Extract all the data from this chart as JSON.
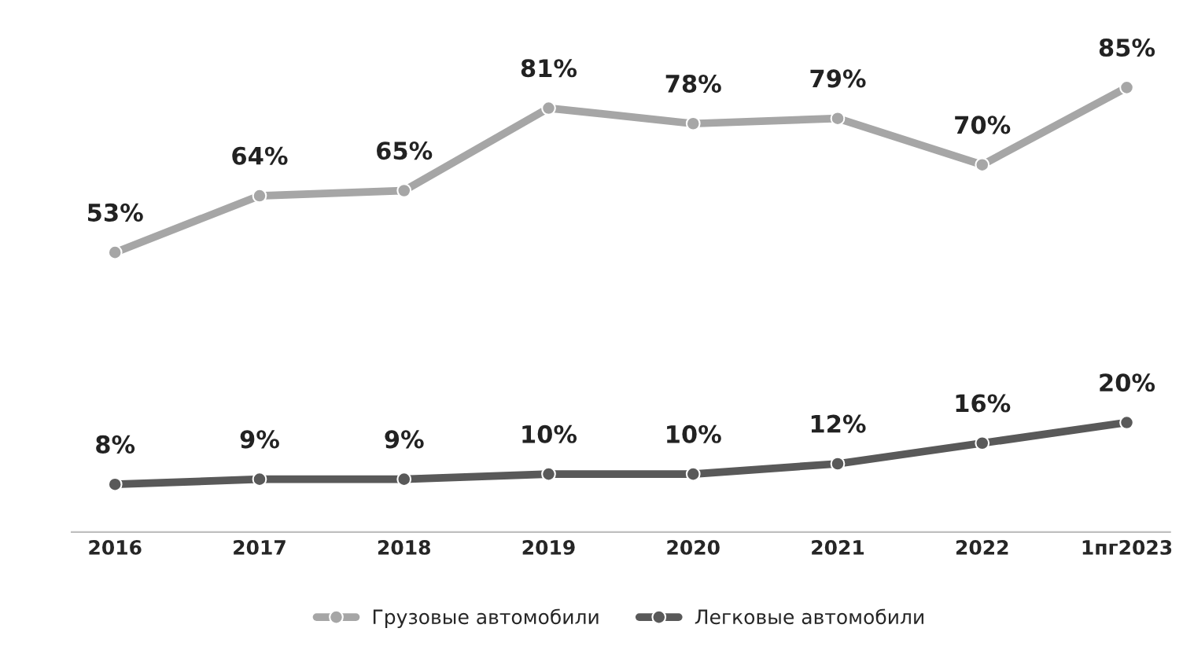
{
  "chart_data": {
    "type": "line",
    "categories": [
      "2016",
      "2017",
      "2018",
      "2019",
      "2020",
      "2021",
      "2022",
      "1пг2023"
    ],
    "series": [
      {
        "name": "Грузовые автомобили",
        "color": "#a6a6a6",
        "values": [
          53,
          64,
          65,
          81,
          78,
          79,
          70,
          85
        ],
        "value_labels": [
          "53%",
          "64%",
          "65%",
          "81%",
          "78%",
          "79%",
          "70%",
          "85%"
        ]
      },
      {
        "name": "Легковые автомобили",
        "color": "#595959",
        "values": [
          8,
          9,
          9,
          10,
          10,
          12,
          16,
          20
        ],
        "value_labels": [
          "8%",
          "9%",
          "9%",
          "10%",
          "10%",
          "12%",
          "16%",
          "20%"
        ]
      }
    ],
    "marker": "circle",
    "line_style": "solid",
    "legend": "bottom",
    "grid": false,
    "tick_labels": "x"
  }
}
